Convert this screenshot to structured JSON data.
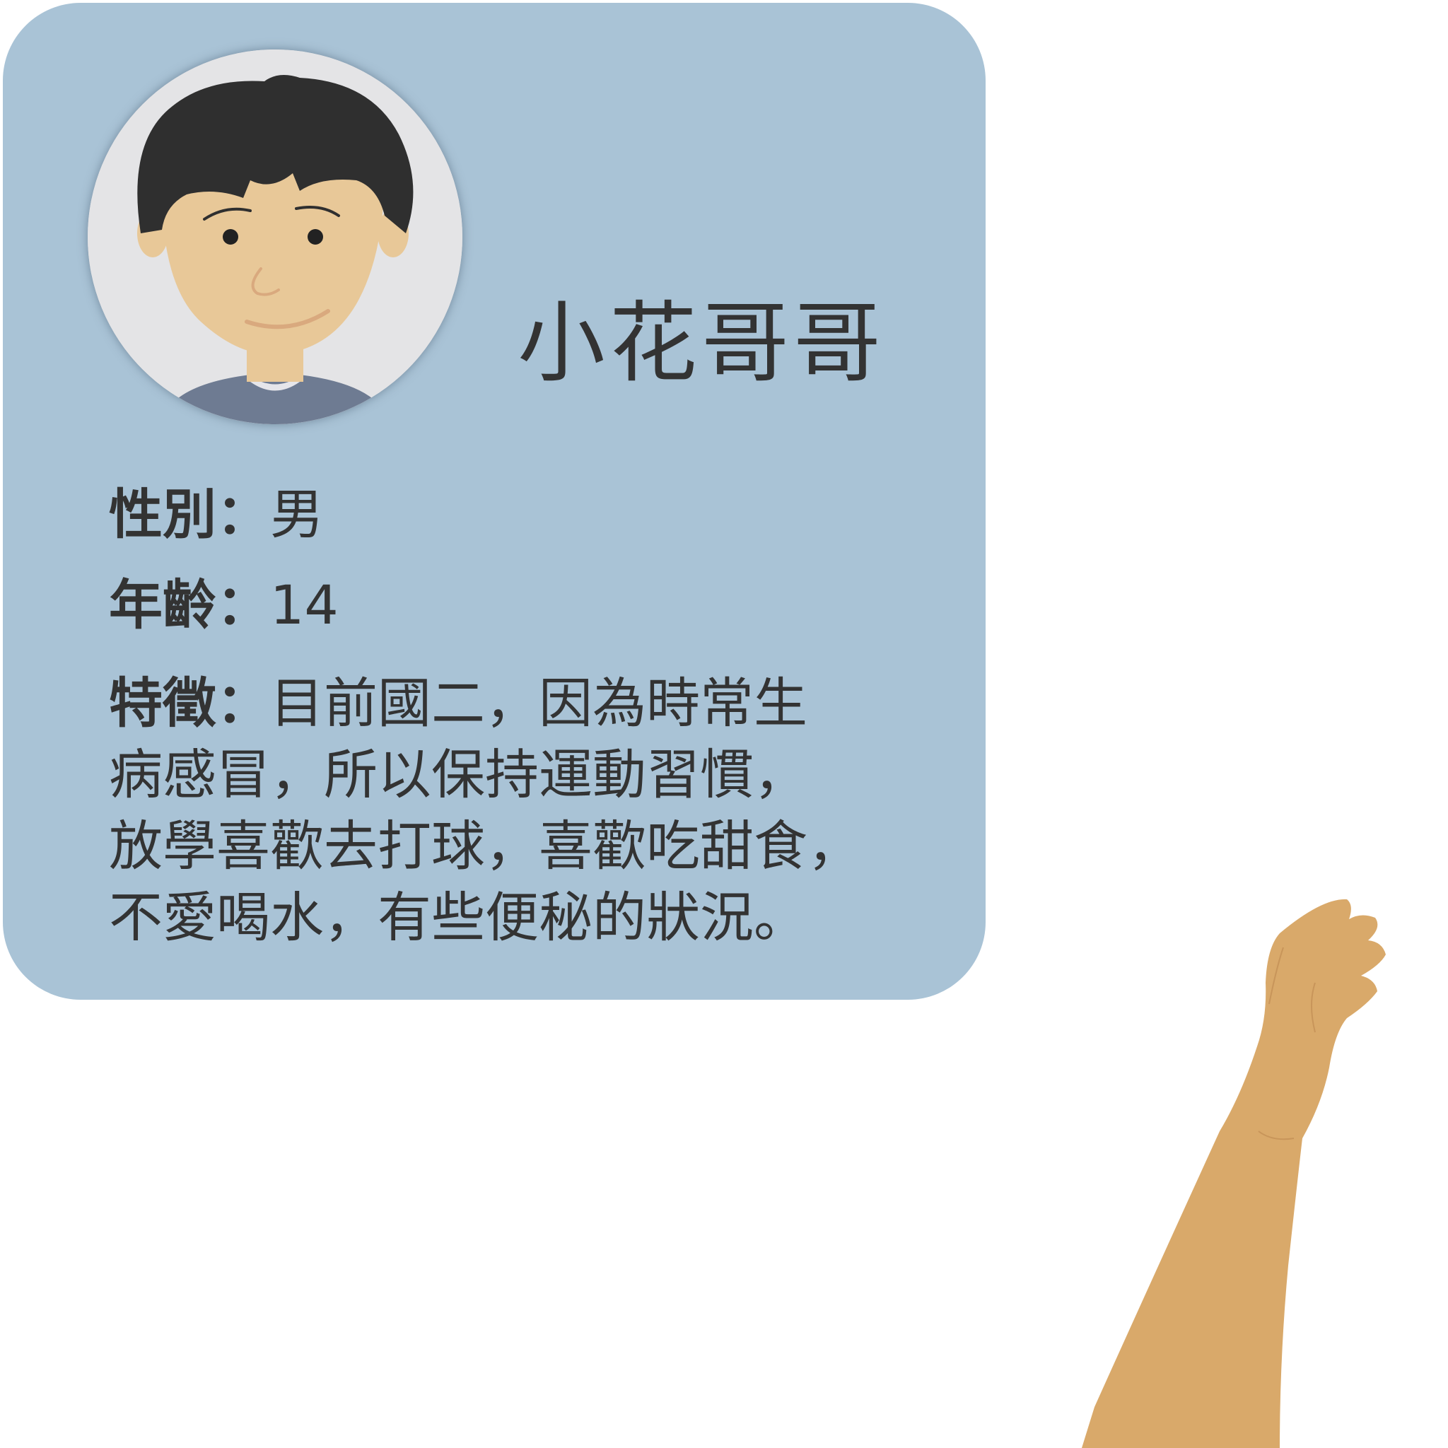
{
  "profile": {
    "name": "小花哥哥",
    "gender_label": "性別：",
    "gender_value": "男",
    "age_label": "年齡：",
    "age_value": "14",
    "feature_label": "特徵：",
    "feature_lines": [
      "目前國二，因為時常生",
      "病感冒，所以保持運動習慣，",
      "放學喜歡去打球，喜歡吃甜食，",
      "不愛喝水，有些便秘的狀況。"
    ]
  },
  "illustrations": {
    "avatar": "boy-portrait-icon",
    "arm": "raised-arm-icon"
  },
  "colors": {
    "card_background": "#a9c3d6",
    "text": "#333333",
    "hair": "#2f2f2f",
    "skin": "#e8c898",
    "arm_skin": "#d9a96a",
    "shirt": "#6e7b92"
  }
}
